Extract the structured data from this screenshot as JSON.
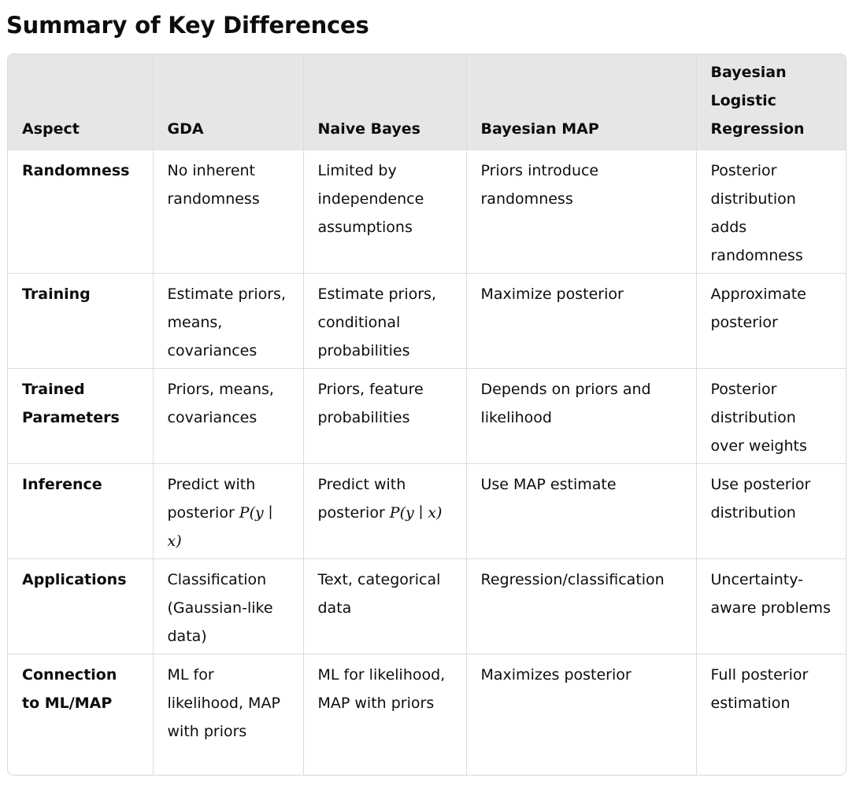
{
  "title": "Summary of Key Differences",
  "table": {
    "headers": [
      "Aspect",
      "GDA",
      "Naive Bayes",
      "Bayesian MAP",
      "Bayesian Logistic Regression"
    ],
    "rows": [
      {
        "aspect": "Randomness",
        "gda": "No inherent randomness",
        "naive_bayes": "Limited by independence assumptions",
        "bayesian_map": "Priors introduce randomness",
        "bayesian_logistic": "Posterior distribution adds randomness"
      },
      {
        "aspect": "Training",
        "gda": "Estimate priors, means, covariances",
        "naive_bayes": "Estimate priors, conditional probabilities",
        "bayesian_map": "Maximize posterior",
        "bayesian_logistic": "Approximate posterior"
      },
      {
        "aspect": "Trained Parameters",
        "gda": "Priors, means, covariances",
        "naive_bayes": "Priors, feature probabilities",
        "bayesian_map": "Depends on priors and likelihood",
        "bayesian_logistic": "Posterior distribution over weights"
      },
      {
        "aspect": "Inference",
        "gda": "Predict with posterior",
        "gda_math": "P(y ∣ x)",
        "naive_bayes": "Predict with posterior",
        "naive_bayes_math": "P(y ∣ x)",
        "bayesian_map": "Use MAP estimate",
        "bayesian_logistic": "Use posterior distribution"
      },
      {
        "aspect": "Applications",
        "gda": "Classification (Gaussian-like data)",
        "naive_bayes": "Text, categorical data",
        "bayesian_map": "Regression/classification",
        "bayesian_logistic": "Uncertainty-aware problems"
      },
      {
        "aspect": "Connection to ML/MAP",
        "gda": "ML for likelihood, MAP with priors",
        "naive_bayes": "ML for likelihood, MAP with priors",
        "bayesian_map": "Maximizes posterior",
        "bayesian_logistic": "Full posterior estimation"
      }
    ]
  }
}
